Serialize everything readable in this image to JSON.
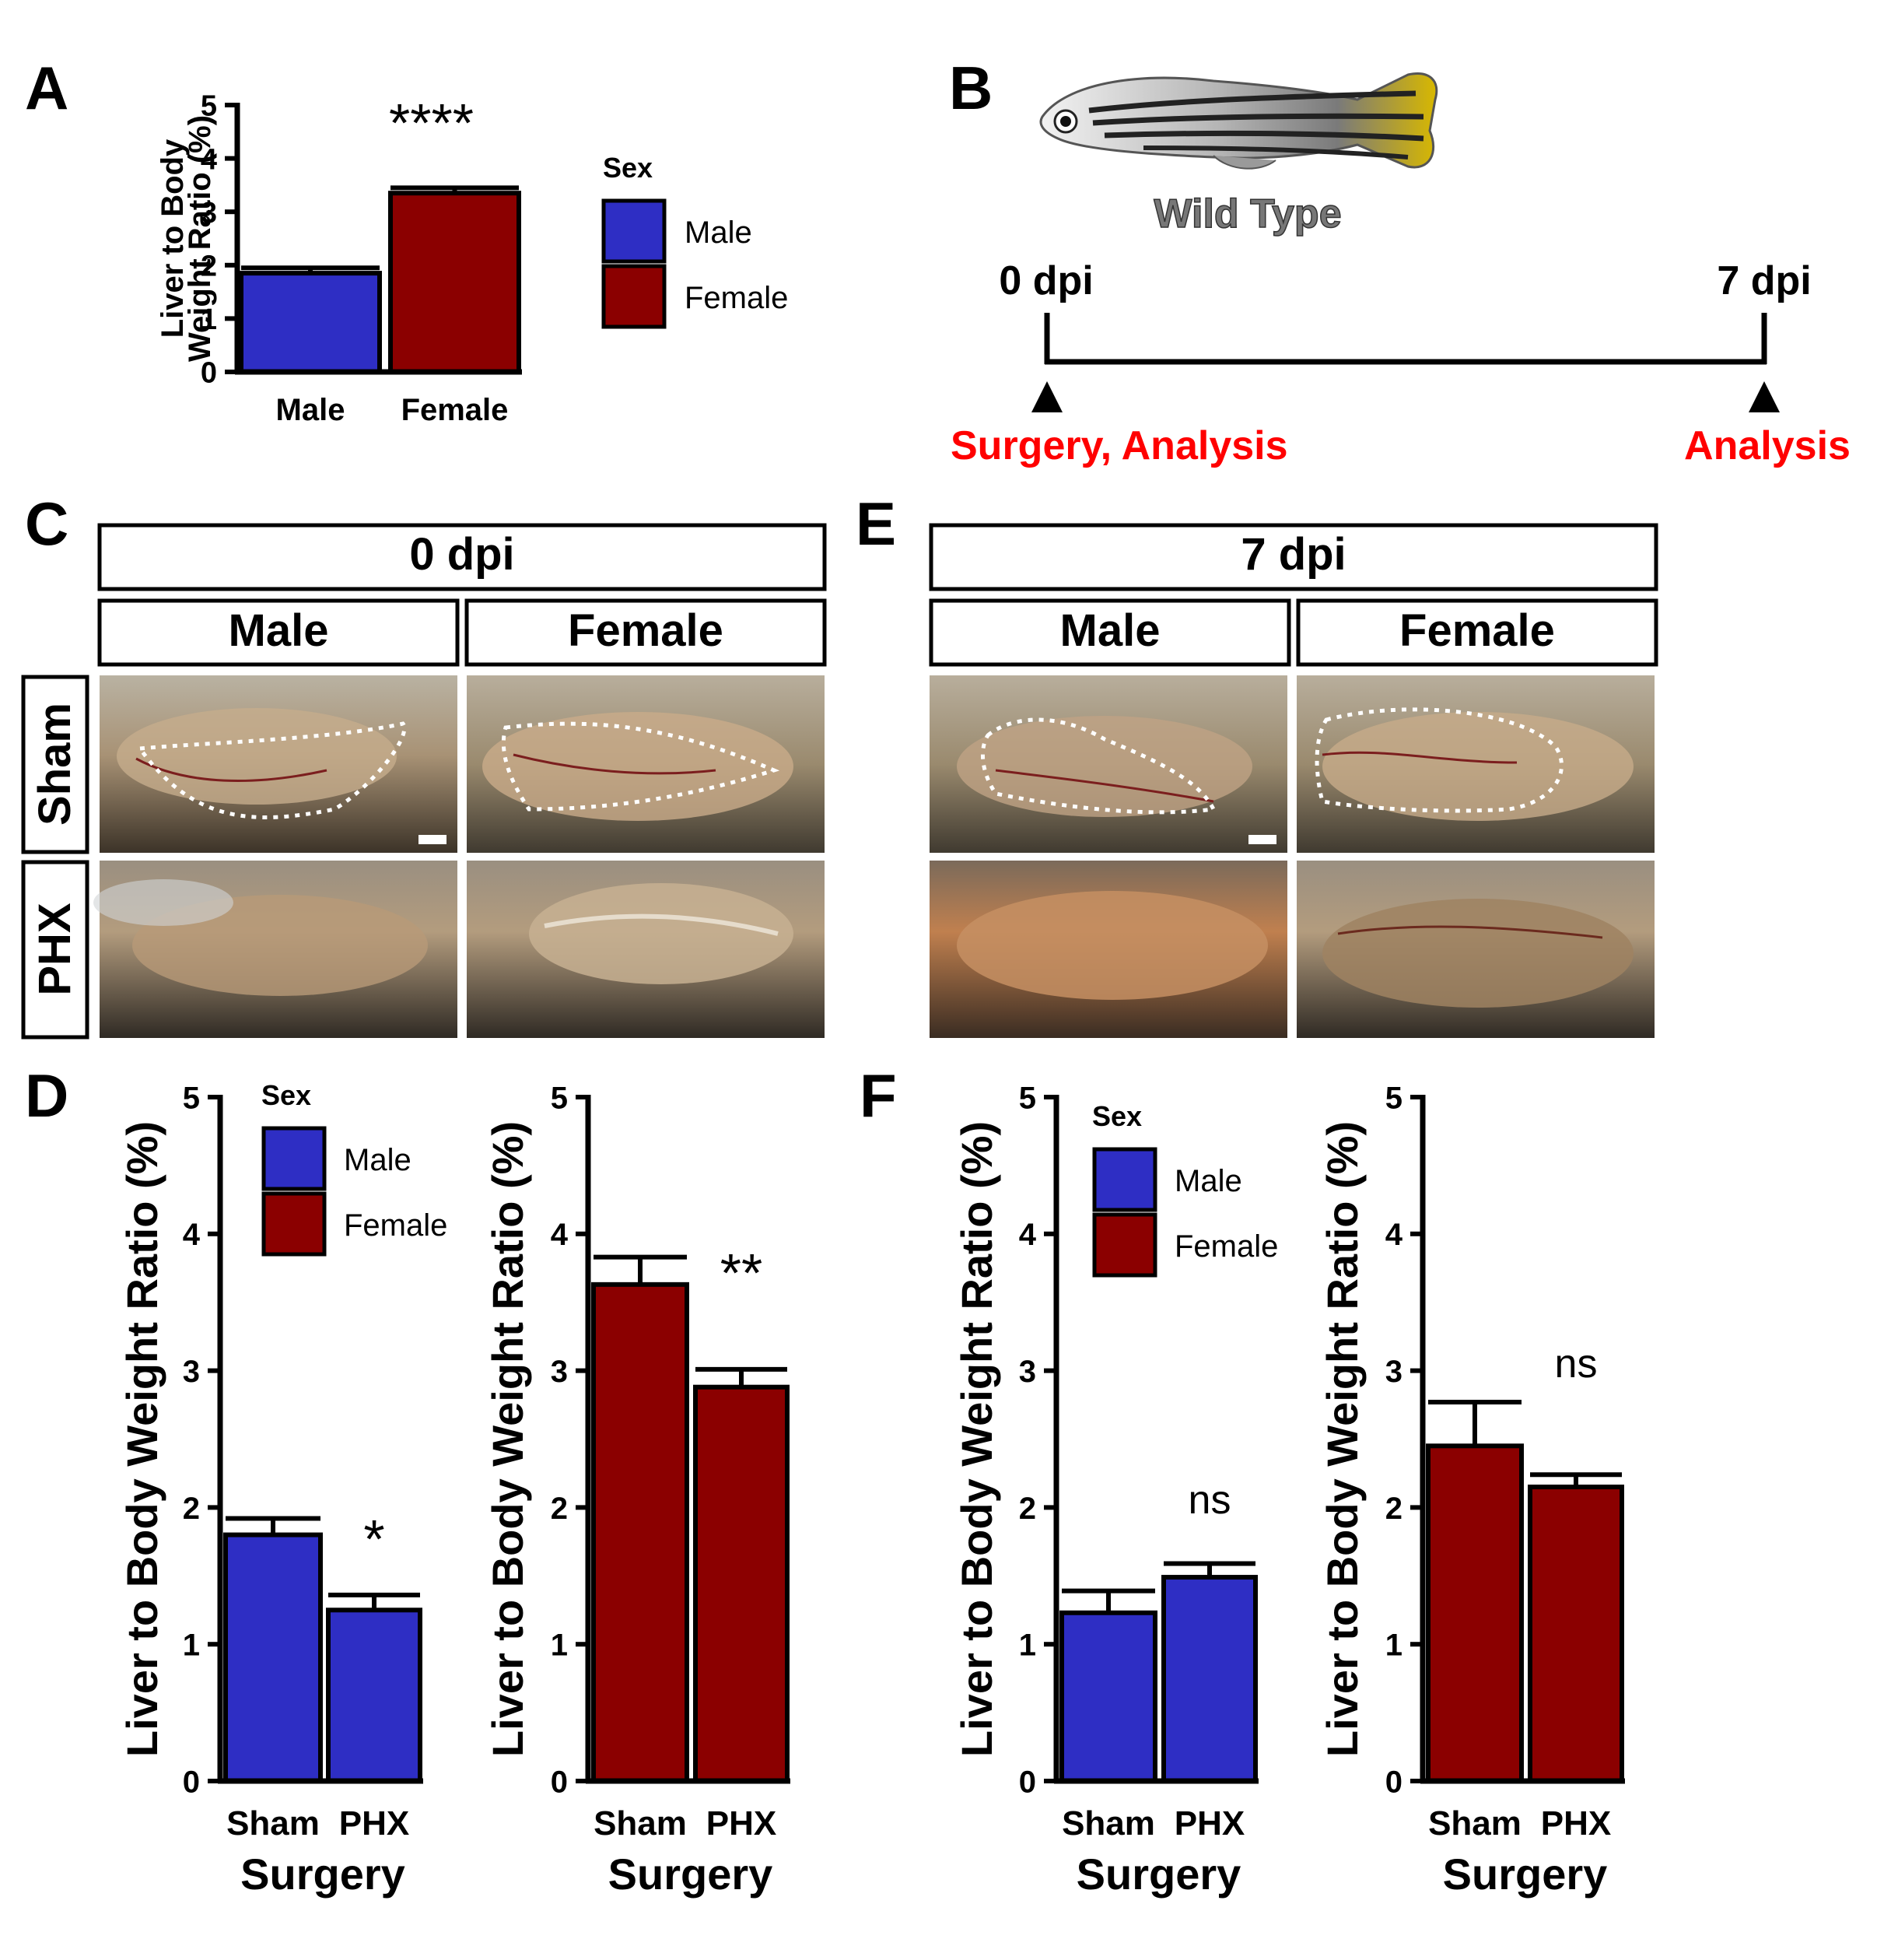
{
  "colors": {
    "male": "#2e2ec4",
    "female": "#8b0000",
    "red_text": "#ff0000",
    "black": "#000000"
  },
  "panels": {
    "A": "A",
    "B": "B",
    "C": "C",
    "D": "D",
    "E": "E",
    "F": "F"
  },
  "legend": {
    "title": "Sex",
    "male": "Male",
    "female": "Female"
  },
  "panelB": {
    "fish_label": "Wild Type",
    "start_label": "0 dpi",
    "end_label": "7 dpi",
    "start_event": "Surgery, Analysis",
    "end_event": "Analysis"
  },
  "panelC": {
    "title": "0 dpi",
    "col1": "Male",
    "col2": "Female",
    "row1": "Sham",
    "row2": "PHX"
  },
  "panelE": {
    "title": "7 dpi",
    "col1": "Male",
    "col2": "Female"
  },
  "chart_data": [
    {
      "id": "A",
      "type": "bar",
      "categories": [
        "Male",
        "Female"
      ],
      "values": [
        1.85,
        3.35
      ],
      "errors": [
        0.1,
        0.1
      ],
      "colors": [
        "male",
        "female"
      ],
      "ylabel": [
        "Liver to Body",
        "Weight Ratio (%)"
      ],
      "xlabel": "",
      "ylim": [
        0,
        5
      ],
      "yticks": [
        0,
        1,
        2,
        3,
        4,
        5
      ],
      "significance": "****",
      "legend": "right"
    },
    {
      "id": "D-male",
      "type": "bar",
      "categories": [
        "Sham",
        "PHX"
      ],
      "values": [
        1.8,
        1.25
      ],
      "errors": [
        0.12,
        0.11
      ],
      "colors": [
        "male",
        "male"
      ],
      "ylabel": "Liver to Body Weight Ratio (%)",
      "xlabel": "Surgery",
      "ylim": [
        0,
        5
      ],
      "yticks": [
        0,
        1,
        2,
        3,
        4,
        5
      ],
      "significance": "*",
      "legend": "top-right"
    },
    {
      "id": "D-female",
      "type": "bar",
      "categories": [
        "Sham",
        "PHX"
      ],
      "values": [
        3.63,
        2.88
      ],
      "errors": [
        0.2,
        0.13
      ],
      "colors": [
        "female",
        "female"
      ],
      "ylabel": "Liver to Body Weight Ratio (%)",
      "xlabel": "Surgery",
      "ylim": [
        0,
        5
      ],
      "yticks": [
        0,
        1,
        2,
        3,
        4,
        5
      ],
      "significance": "**"
    },
    {
      "id": "F-male",
      "type": "bar",
      "categories": [
        "Sham",
        "PHX"
      ],
      "values": [
        1.23,
        1.49
      ],
      "errors": [
        0.16,
        0.1
      ],
      "colors": [
        "male",
        "male"
      ],
      "ylabel": "Liver to Body Weight Ratio (%)",
      "xlabel": "Surgery",
      "ylim": [
        0,
        5
      ],
      "yticks": [
        0,
        1,
        2,
        3,
        4,
        5
      ],
      "significance": "ns",
      "legend": "top-right"
    },
    {
      "id": "F-female",
      "type": "bar",
      "categories": [
        "Sham",
        "PHX"
      ],
      "values": [
        2.45,
        2.15
      ],
      "errors": [
        0.32,
        0.09
      ],
      "colors": [
        "female",
        "female"
      ],
      "ylabel": "Liver to Body Weight Ratio (%)",
      "xlabel": "Surgery",
      "ylim": [
        0,
        5
      ],
      "yticks": [
        0,
        1,
        2,
        3,
        4,
        5
      ],
      "significance": "ns"
    }
  ]
}
